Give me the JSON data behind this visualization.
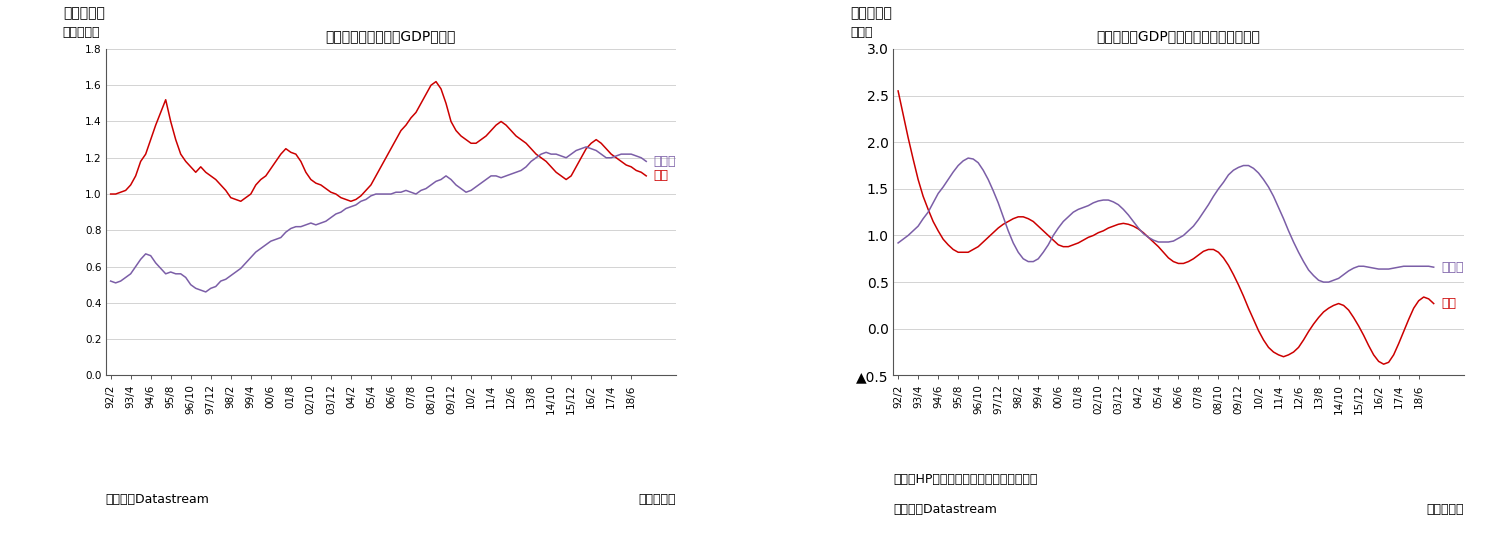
{
  "chart1": {
    "title": "日独のドル建て名目GDPの推移",
    "ylabel": "（兆ドル）",
    "figure_label": "（図表１）",
    "ylim": [
      0.0,
      1.8
    ],
    "yticks": [
      0.0,
      0.2,
      0.4,
      0.6,
      0.8,
      1.0,
      1.2,
      1.4,
      1.6,
      1.8
    ],
    "source": "（資料）Datastream",
    "period": "（四半期）",
    "germany_color": "#7B5EA7",
    "japan_color": "#CC0000",
    "germany_label": "ドイツ",
    "japan_label": "日本",
    "germany_data": [
      0.52,
      0.51,
      0.52,
      0.54,
      0.56,
      0.6,
      0.64,
      0.67,
      0.66,
      0.62,
      0.59,
      0.56,
      0.57,
      0.56,
      0.56,
      0.54,
      0.5,
      0.48,
      0.47,
      0.46,
      0.48,
      0.49,
      0.52,
      0.53,
      0.55,
      0.57,
      0.59,
      0.62,
      0.65,
      0.68,
      0.7,
      0.72,
      0.74,
      0.75,
      0.76,
      0.79,
      0.81,
      0.82,
      0.82,
      0.83,
      0.84,
      0.83,
      0.84,
      0.85,
      0.87,
      0.89,
      0.9,
      0.92,
      0.93,
      0.94,
      0.96,
      0.97,
      0.99,
      1.0,
      1.0,
      1.0,
      1.0,
      1.01,
      1.01,
      1.02,
      1.01,
      1.0,
      1.02,
      1.03,
      1.05,
      1.07,
      1.08,
      1.1,
      1.08,
      1.05,
      1.03,
      1.01,
      1.02,
      1.04,
      1.06,
      1.08,
      1.1,
      1.1,
      1.09,
      1.1,
      1.11,
      1.12,
      1.13,
      1.15,
      1.18,
      1.2,
      1.22,
      1.23,
      1.22,
      1.22,
      1.21,
      1.2,
      1.22,
      1.24,
      1.25,
      1.26,
      1.25,
      1.24,
      1.22,
      1.2,
      1.2,
      1.21,
      1.22,
      1.22,
      1.22,
      1.21,
      1.2,
      1.18
    ],
    "japan_data": [
      1.0,
      1.0,
      1.01,
      1.02,
      1.05,
      1.1,
      1.18,
      1.22,
      1.3,
      1.38,
      1.45,
      1.52,
      1.4,
      1.3,
      1.22,
      1.18,
      1.15,
      1.12,
      1.15,
      1.12,
      1.1,
      1.08,
      1.05,
      1.02,
      0.98,
      0.97,
      0.96,
      0.98,
      1.0,
      1.05,
      1.08,
      1.1,
      1.14,
      1.18,
      1.22,
      1.25,
      1.23,
      1.22,
      1.18,
      1.12,
      1.08,
      1.06,
      1.05,
      1.03,
      1.01,
      1.0,
      0.98,
      0.97,
      0.96,
      0.97,
      0.99,
      1.02,
      1.05,
      1.1,
      1.15,
      1.2,
      1.25,
      1.3,
      1.35,
      1.38,
      1.42,
      1.45,
      1.5,
      1.55,
      1.6,
      1.62,
      1.58,
      1.5,
      1.4,
      1.35,
      1.32,
      1.3,
      1.28,
      1.28,
      1.3,
      1.32,
      1.35,
      1.38,
      1.4,
      1.38,
      1.35,
      1.32,
      1.3,
      1.28,
      1.25,
      1.22,
      1.2,
      1.18,
      1.15,
      1.12,
      1.1,
      1.08,
      1.1,
      1.15,
      1.2,
      1.25,
      1.28,
      1.3,
      1.28,
      1.25,
      1.22,
      1.2,
      1.18,
      1.16,
      1.15,
      1.13,
      1.12,
      1.1
    ]
  },
  "chart2": {
    "title": "日独の実質GDP成長率（トレンド成分）",
    "ylabel": "（％）",
    "figure_label": "（図表２）",
    "ylim": [
      -0.5,
      3.0
    ],
    "yticks": [
      -0.5,
      0.0,
      0.5,
      1.0,
      1.5,
      2.0,
      2.5,
      3.0
    ],
    "ytick_labels": [
      "▲0.5",
      "0.0",
      "0.5",
      "1.0",
      "1.5",
      "2.0",
      "2.5",
      "3.0"
    ],
    "source": "（資料）Datastream",
    "note": "（注）HPフィルタでトレンド成分を抽出",
    "period": "（四半期）",
    "germany_color": "#7B5EA7",
    "japan_color": "#CC0000",
    "germany_label": "ドイツ",
    "japan_label": "日本",
    "germany_data": [
      0.92,
      0.96,
      1.0,
      1.05,
      1.1,
      1.18,
      1.25,
      1.35,
      1.45,
      1.52,
      1.6,
      1.68,
      1.75,
      1.8,
      1.83,
      1.82,
      1.78,
      1.7,
      1.6,
      1.48,
      1.35,
      1.2,
      1.05,
      0.92,
      0.82,
      0.75,
      0.72,
      0.72,
      0.75,
      0.82,
      0.9,
      1.0,
      1.08,
      1.15,
      1.2,
      1.25,
      1.28,
      1.3,
      1.32,
      1.35,
      1.37,
      1.38,
      1.38,
      1.36,
      1.33,
      1.28,
      1.22,
      1.15,
      1.08,
      1.02,
      0.98,
      0.95,
      0.93,
      0.93,
      0.93,
      0.94,
      0.97,
      1.0,
      1.05,
      1.1,
      1.17,
      1.25,
      1.33,
      1.42,
      1.5,
      1.57,
      1.65,
      1.7,
      1.73,
      1.75,
      1.75,
      1.72,
      1.67,
      1.6,
      1.52,
      1.42,
      1.3,
      1.18,
      1.05,
      0.93,
      0.82,
      0.72,
      0.63,
      0.57,
      0.52,
      0.5,
      0.5,
      0.52,
      0.54,
      0.58,
      0.62,
      0.65,
      0.67,
      0.67,
      0.66,
      0.65,
      0.64,
      0.64,
      0.64,
      0.65,
      0.66,
      0.67,
      0.67,
      0.67,
      0.67,
      0.67,
      0.67,
      0.66
    ],
    "japan_data": [
      2.55,
      2.3,
      2.05,
      1.82,
      1.6,
      1.42,
      1.28,
      1.15,
      1.05,
      0.96,
      0.9,
      0.85,
      0.82,
      0.82,
      0.82,
      0.85,
      0.88,
      0.93,
      0.98,
      1.03,
      1.08,
      1.12,
      1.15,
      1.18,
      1.2,
      1.2,
      1.18,
      1.15,
      1.1,
      1.05,
      1.0,
      0.95,
      0.9,
      0.88,
      0.88,
      0.9,
      0.92,
      0.95,
      0.98,
      1.0,
      1.03,
      1.05,
      1.08,
      1.1,
      1.12,
      1.13,
      1.12,
      1.1,
      1.07,
      1.03,
      0.98,
      0.93,
      0.88,
      0.82,
      0.76,
      0.72,
      0.7,
      0.7,
      0.72,
      0.75,
      0.79,
      0.83,
      0.85,
      0.85,
      0.82,
      0.76,
      0.68,
      0.58,
      0.47,
      0.35,
      0.22,
      0.1,
      -0.02,
      -0.12,
      -0.2,
      -0.25,
      -0.28,
      -0.3,
      -0.28,
      -0.25,
      -0.2,
      -0.12,
      -0.03,
      0.05,
      0.12,
      0.18,
      0.22,
      0.25,
      0.27,
      0.25,
      0.2,
      0.12,
      0.03,
      -0.07,
      -0.18,
      -0.28,
      -0.35,
      -0.38,
      -0.36,
      -0.28,
      -0.16,
      -0.03,
      0.1,
      0.22,
      0.3,
      0.34,
      0.32,
      0.27
    ]
  },
  "background_color": "#ffffff",
  "grid_color": "#cccccc",
  "axis_color": "#555555",
  "title_fontsize": 12,
  "label_fontsize": 9,
  "tick_fontsize": 7.5,
  "annot_fontsize": 9
}
